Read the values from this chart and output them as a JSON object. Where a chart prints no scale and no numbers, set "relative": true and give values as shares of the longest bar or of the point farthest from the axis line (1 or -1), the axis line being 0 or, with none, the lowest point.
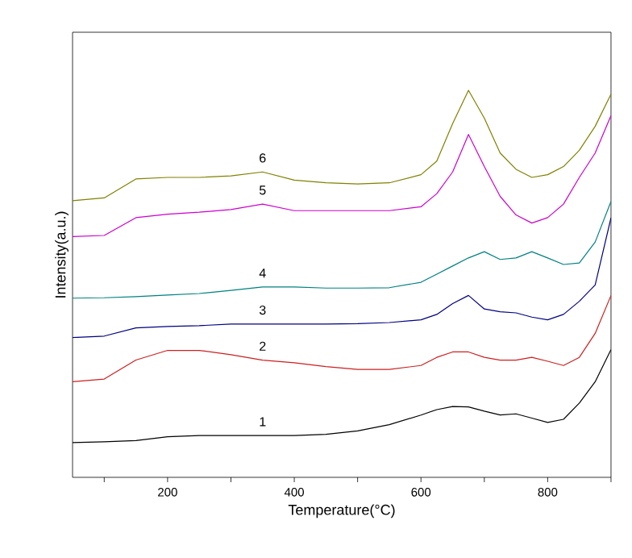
{
  "chart_data": {
    "type": "line",
    "xlabel": "Temperature(°C)",
    "ylabel": "Intensity(a.u.)",
    "relative": true,
    "x": [
      50,
      100,
      150,
      200,
      250,
      300,
      350,
      400,
      450,
      500,
      550,
      600,
      625,
      650,
      675,
      700,
      725,
      750,
      775,
      800,
      825,
      850,
      875,
      900
    ],
    "xlim": [
      50,
      900
    ],
    "xticks": [
      {
        "value": 100,
        "label": null
      },
      200,
      {
        "value": 300,
        "label": null
      },
      400,
      {
        "value": 500,
        "label": null
      },
      600,
      {
        "value": 700,
        "label": null
      },
      800,
      {
        "value": 900,
        "label": null
      }
    ],
    "tick_labels": "x",
    "grid": false,
    "marker": "none",
    "line_style": "solid",
    "series": [
      {
        "name": "1",
        "color": "#000000",
        "values": [
          0.09,
          0.092,
          0.095,
          0.105,
          0.108,
          0.108,
          0.108,
          0.108,
          0.111,
          0.12,
          0.136,
          0.161,
          0.175,
          0.183,
          0.182,
          0.171,
          0.161,
          0.164,
          0.153,
          0.142,
          0.15,
          0.192,
          0.247,
          0.33
        ]
      },
      {
        "name": "2",
        "color": "#cc2020",
        "values": [
          0.247,
          0.254,
          0.303,
          0.328,
          0.328,
          0.317,
          0.303,
          0.296,
          0.286,
          0.279,
          0.279,
          0.289,
          0.31,
          0.324,
          0.324,
          0.31,
          0.303,
          0.303,
          0.31,
          0.3,
          0.289,
          0.31,
          0.372,
          0.47
        ]
      },
      {
        "name": "3",
        "color": "#000080",
        "values": [
          0.361,
          0.365,
          0.386,
          0.39,
          0.392,
          0.396,
          0.396,
          0.396,
          0.396,
          0.397,
          0.4,
          0.407,
          0.421,
          0.449,
          0.47,
          0.435,
          0.428,
          0.425,
          0.414,
          0.407,
          0.421,
          0.455,
          0.497,
          0.671
        ]
      },
      {
        "name": "4",
        "color": "#008080",
        "values": [
          0.463,
          0.464,
          0.467,
          0.471,
          0.475,
          0.483,
          0.492,
          0.492,
          0.489,
          0.489,
          0.49,
          0.504,
          0.525,
          0.546,
          0.567,
          0.583,
          0.563,
          0.567,
          0.583,
          0.567,
          0.55,
          0.554,
          0.608,
          0.713
        ]
      },
      {
        "name": "5",
        "color": "#cc00cc",
        "values": [
          0.622,
          0.625,
          0.671,
          0.68,
          0.685,
          0.692,
          0.706,
          0.689,
          0.689,
          0.689,
          0.689,
          0.699,
          0.733,
          0.789,
          0.886,
          0.803,
          0.726,
          0.678,
          0.657,
          0.671,
          0.706,
          0.775,
          0.838,
          0.935
        ]
      },
      {
        "name": "6",
        "color": "#808000",
        "values": [
          0.715,
          0.722,
          0.771,
          0.775,
          0.775,
          0.779,
          0.789,
          0.768,
          0.761,
          0.758,
          0.761,
          0.782,
          0.817,
          0.914,
          1.0,
          0.928,
          0.838,
          0.796,
          0.775,
          0.782,
          0.803,
          0.845,
          0.907,
          0.99
        ]
      }
    ]
  }
}
